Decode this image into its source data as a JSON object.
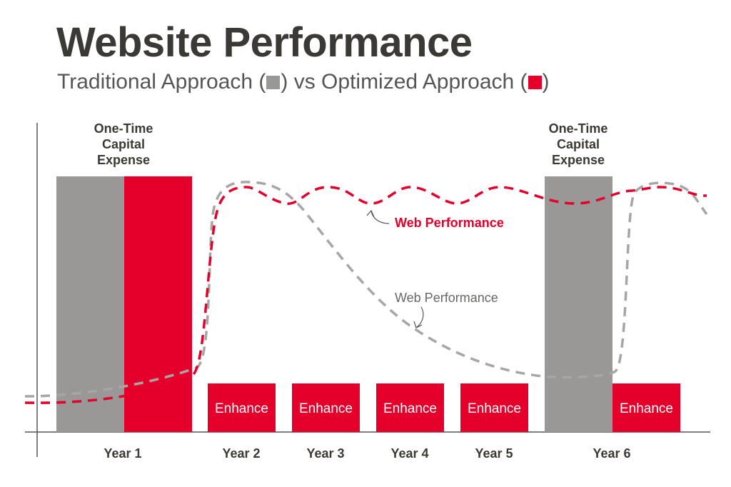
{
  "title": "Website Performance",
  "subtitle": {
    "part1": "Traditional Approach (",
    "part2": ") vs Optimized Approach (",
    "part3": ")"
  },
  "colors": {
    "traditional": "#9a9896",
    "optimized": "#e4002b",
    "axis": "#555555",
    "text": "#3b3936"
  },
  "chart_data": {
    "type": "bar",
    "categories": [
      "Year 1",
      "Year 2",
      "Year 3",
      "Year 4",
      "Year 5",
      "Year 6"
    ],
    "bars": [
      {
        "series": "traditional",
        "category": "Year 1",
        "value": 1.0,
        "label": ""
      },
      {
        "series": "optimized",
        "category": "Year 1",
        "value": 1.0,
        "label": ""
      },
      {
        "series": "optimized",
        "category": "Year 2",
        "value": 0.19,
        "label": "Enhance"
      },
      {
        "series": "optimized",
        "category": "Year 3",
        "value": 0.19,
        "label": "Enhance"
      },
      {
        "series": "optimized",
        "category": "Year 4",
        "value": 0.19,
        "label": "Enhance"
      },
      {
        "series": "optimized",
        "category": "Year 5",
        "value": 0.19,
        "label": "Enhance"
      },
      {
        "series": "traditional",
        "category": "Year 6",
        "value": 1.0,
        "label": ""
      },
      {
        "series": "optimized",
        "category": "Year 6",
        "value": 0.19,
        "label": "Enhance"
      }
    ],
    "annotations": [
      {
        "text": [
          "One-Time",
          "Capital",
          "Expense"
        ],
        "category": "Year 1"
      },
      {
        "text": [
          "One-Time",
          "Capital",
          "Expense"
        ],
        "category": "Year 6"
      }
    ],
    "lines": [
      {
        "series": "optimized",
        "label": "Web Performance",
        "style": "dashed"
      },
      {
        "series": "traditional",
        "label": "Web Performance",
        "style": "dashed"
      }
    ],
    "legend": [
      {
        "series": "traditional",
        "color": "#9a9896"
      },
      {
        "series": "optimized",
        "color": "#e4002b"
      }
    ]
  }
}
